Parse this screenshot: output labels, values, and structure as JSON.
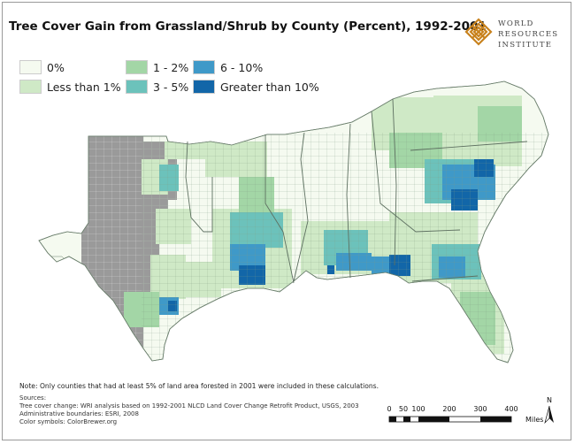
{
  "title": "Tree Cover Gain from Grassland/Shrub by County (Percent), 1992-2001",
  "logo": {
    "line1": "WORLD",
    "line2": "RESOURCES",
    "line3": "INSTITUTE",
    "icon": "wri-knot-icon"
  },
  "legend": {
    "items": [
      {
        "label": "0%",
        "color": "#f5faf0"
      },
      {
        "label": "Less than 1%",
        "color": "#cfe9c6"
      },
      {
        "label": "1 - 2%",
        "color": "#a3d6a6"
      },
      {
        "label": "3 - 5%",
        "color": "#6cc2bb"
      },
      {
        "label": "6 - 10%",
        "color": "#3f99c8"
      },
      {
        "label": "Greater than 10%",
        "color": "#1266a8"
      }
    ],
    "excluded_color": "#9a9a9a"
  },
  "note": "Note:  Only counties that had at least 5% of land area forested in 2001 were included in these calculations.",
  "sources": {
    "heading": "Sources:",
    "lines": [
      "Tree cover change:  WRI analysis based on 1992-2001 NLCD Land Cover Change Retrofit Product, USGS, 2003",
      "Administrative boundaries:  ESRI, 2008",
      "Color symbols:  ColorBrewer.org"
    ]
  },
  "scale": {
    "ticks": [
      "0",
      "50",
      "100",
      "200",
      "300",
      "400"
    ],
    "unit": "Miles"
  },
  "north": "N"
}
